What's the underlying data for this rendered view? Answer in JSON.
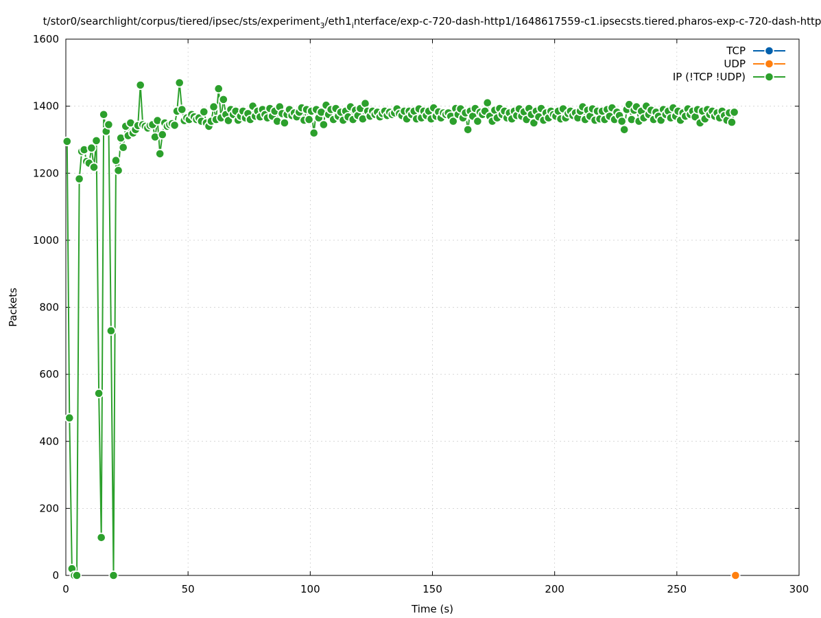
{
  "chart_data": {
    "type": "line",
    "title_parts": [
      {
        "text": "t/stor0/searchlight/corpus/tiered/ipsec/sts/experiment",
        "shift": "none"
      },
      {
        "text": "3",
        "shift": "sub"
      },
      {
        "text": "/eth1",
        "shift": "none"
      },
      {
        "text": "i",
        "shift": "sub"
      },
      {
        "text": "nterface/exp-c-720-dash-http1/1648617559-c1.ipsecsts.tiered.pharos-exp-c-720-dash-http",
        "shift": "none"
      }
    ],
    "xlabel": "Time (s)",
    "ylabel": "Packets",
    "xlim": [
      0,
      300
    ],
    "ylim": [
      0,
      1600
    ],
    "xticks": [
      0,
      50,
      100,
      150,
      200,
      250,
      300
    ],
    "yticks": [
      0,
      200,
      400,
      600,
      800,
      1000,
      1200,
      1400,
      1600
    ],
    "grid": true,
    "legend_position": "top-right",
    "series": [
      {
        "name": "TCP",
        "color": "#0060ad",
        "points": []
      },
      {
        "name": "UDP",
        "color": "#ff7f0e",
        "points": [
          [
            274,
            0
          ]
        ]
      },
      {
        "name": "IP (!TCP  !UDP)",
        "color": "#2ca02c",
        "points": [
          [
            0.5,
            1295
          ],
          [
            1.5,
            470
          ],
          [
            2.5,
            20
          ],
          [
            3.5,
            0
          ],
          [
            4.5,
            0
          ],
          [
            5.5,
            1183
          ],
          [
            6.5,
            1265
          ],
          [
            7.5,
            1270
          ],
          [
            8.5,
            1235
          ],
          [
            9.5,
            1230
          ],
          [
            10.5,
            1275
          ],
          [
            11.5,
            1218
          ],
          [
            12.5,
            1297
          ],
          [
            13.5,
            543
          ],
          [
            14.5,
            113
          ],
          [
            15.5,
            1375
          ],
          [
            16.5,
            1325
          ],
          [
            17.5,
            1345
          ],
          [
            18.5,
            730
          ],
          [
            19.5,
            0
          ],
          [
            20.5,
            1238
          ],
          [
            21.5,
            1208
          ],
          [
            22.5,
            1305
          ],
          [
            23.5,
            1277
          ],
          [
            24.5,
            1340
          ],
          [
            25.5,
            1312
          ],
          [
            26.5,
            1350
          ],
          [
            27.5,
            1320
          ],
          [
            28.5,
            1330
          ],
          [
            29.5,
            1342
          ],
          [
            30.5,
            1463
          ],
          [
            31.5,
            1345
          ],
          [
            32.5,
            1340
          ],
          [
            33.5,
            1335
          ],
          [
            34.5,
            1342
          ],
          [
            35.5,
            1345
          ],
          [
            36.5,
            1308
          ],
          [
            37.5,
            1357
          ],
          [
            38.5,
            1258
          ],
          [
            39.5,
            1315
          ],
          [
            40.5,
            1350
          ],
          [
            41.5,
            1340
          ],
          [
            42.5,
            1345
          ],
          [
            43.5,
            1348
          ],
          [
            44.5,
            1343
          ],
          [
            45.5,
            1385
          ],
          [
            46.5,
            1470
          ],
          [
            47.5,
            1390
          ],
          [
            48.5,
            1357
          ],
          [
            49.5,
            1365
          ],
          [
            50.5,
            1360
          ],
          [
            51.5,
            1375
          ],
          [
            52.5,
            1368
          ],
          [
            53.5,
            1360
          ],
          [
            54.5,
            1365
          ],
          [
            55.5,
            1355
          ],
          [
            56.5,
            1383
          ],
          [
            57.5,
            1350
          ],
          [
            58.5,
            1340
          ],
          [
            59.5,
            1355
          ],
          [
            60.5,
            1398
          ],
          [
            61.5,
            1360
          ],
          [
            62.5,
            1452
          ],
          [
            63.5,
            1365
          ],
          [
            64.5,
            1420
          ],
          [
            65.5,
            1375
          ],
          [
            66.5,
            1357
          ],
          [
            67.5,
            1390
          ],
          [
            68.5,
            1375
          ],
          [
            69.5,
            1385
          ],
          [
            70.5,
            1358
          ],
          [
            71.5,
            1370
          ],
          [
            72.5,
            1385
          ],
          [
            73.5,
            1365
          ],
          [
            74.5,
            1378
          ],
          [
            75.5,
            1360
          ],
          [
            76.5,
            1400
          ],
          [
            77.5,
            1370
          ],
          [
            78.5,
            1385
          ],
          [
            79.5,
            1368
          ],
          [
            80.5,
            1390
          ],
          [
            81.5,
            1375
          ],
          [
            82.5,
            1365
          ],
          [
            83.5,
            1393
          ],
          [
            84.5,
            1370
          ],
          [
            85.5,
            1385
          ],
          [
            86.5,
            1355
          ],
          [
            87.5,
            1398
          ],
          [
            88.5,
            1378
          ],
          [
            89.5,
            1350
          ],
          [
            90.5,
            1375
          ],
          [
            91.5,
            1390
          ],
          [
            92.5,
            1372
          ],
          [
            93.5,
            1380
          ],
          [
            94.5,
            1368
          ],
          [
            95.5,
            1382
          ],
          [
            96.5,
            1395
          ],
          [
            97.5,
            1358
          ],
          [
            98.5,
            1390
          ],
          [
            99.5,
            1360
          ],
          [
            100.5,
            1385
          ],
          [
            101.5,
            1320
          ],
          [
            102.5,
            1390
          ],
          [
            103.5,
            1365
          ],
          [
            104.5,
            1382
          ],
          [
            105.5,
            1345
          ],
          [
            106.5,
            1403
          ],
          [
            107.5,
            1375
          ],
          [
            108.5,
            1390
          ],
          [
            109.5,
            1360
          ],
          [
            110.5,
            1393
          ],
          [
            111.5,
            1370
          ],
          [
            112.5,
            1382
          ],
          [
            113.5,
            1358
          ],
          [
            114.5,
            1385
          ],
          [
            115.5,
            1368
          ],
          [
            116.5,
            1398
          ],
          [
            117.5,
            1360
          ],
          [
            118.5,
            1388
          ],
          [
            119.5,
            1372
          ],
          [
            120.5,
            1393
          ],
          [
            121.5,
            1362
          ],
          [
            122.5,
            1408
          ],
          [
            123.5,
            1385
          ],
          [
            124.5,
            1370
          ],
          [
            125.5,
            1385
          ],
          [
            126.5,
            1375
          ],
          [
            127.5,
            1382
          ],
          [
            128.5,
            1368
          ],
          [
            129.5,
            1378
          ],
          [
            130.5,
            1385
          ],
          [
            131.5,
            1372
          ],
          [
            132.5,
            1382
          ],
          [
            133.5,
            1375
          ],
          [
            134.5,
            1380
          ],
          [
            135.5,
            1392
          ],
          [
            136.5,
            1378
          ],
          [
            137.5,
            1372
          ],
          [
            138.5,
            1385
          ],
          [
            139.5,
            1362
          ],
          [
            140.5,
            1385
          ],
          [
            141.5,
            1375
          ],
          [
            142.5,
            1385
          ],
          [
            143.5,
            1362
          ],
          [
            144.5,
            1392
          ],
          [
            145.5,
            1365
          ],
          [
            146.5,
            1385
          ],
          [
            147.5,
            1372
          ],
          [
            148.5,
            1385
          ],
          [
            149.5,
            1362
          ],
          [
            150.5,
            1395
          ],
          [
            151.5,
            1370
          ],
          [
            152.5,
            1383
          ],
          [
            153.5,
            1365
          ],
          [
            154.5,
            1380
          ],
          [
            155.5,
            1375
          ],
          [
            156.5,
            1380
          ],
          [
            157.5,
            1370
          ],
          [
            158.5,
            1355
          ],
          [
            159.5,
            1393
          ],
          [
            160.5,
            1375
          ],
          [
            161.5,
            1392
          ],
          [
            162.5,
            1365
          ],
          [
            163.5,
            1380
          ],
          [
            164.5,
            1330
          ],
          [
            165.5,
            1385
          ],
          [
            166.5,
            1370
          ],
          [
            167.5,
            1393
          ],
          [
            168.5,
            1355
          ],
          [
            169.5,
            1382
          ],
          [
            170.5,
            1375
          ],
          [
            171.5,
            1385
          ],
          [
            172.5,
            1410
          ],
          [
            173.5,
            1370
          ],
          [
            174.5,
            1355
          ],
          [
            175.5,
            1388
          ],
          [
            176.5,
            1365
          ],
          [
            177.5,
            1393
          ],
          [
            178.5,
            1375
          ],
          [
            179.5,
            1385
          ],
          [
            180.5,
            1365
          ],
          [
            181.5,
            1380
          ],
          [
            182.5,
            1362
          ],
          [
            183.5,
            1385
          ],
          [
            184.5,
            1372
          ],
          [
            185.5,
            1392
          ],
          [
            186.5,
            1370
          ],
          [
            187.5,
            1383
          ],
          [
            188.5,
            1360
          ],
          [
            189.5,
            1393
          ],
          [
            190.5,
            1375
          ],
          [
            191.5,
            1350
          ],
          [
            192.5,
            1385
          ],
          [
            193.5,
            1368
          ],
          [
            194.5,
            1393
          ],
          [
            195.5,
            1358
          ],
          [
            196.5,
            1380
          ],
          [
            197.5,
            1365
          ],
          [
            198.5,
            1385
          ],
          [
            199.5,
            1375
          ],
          [
            200.5,
            1370
          ],
          [
            201.5,
            1385
          ],
          [
            202.5,
            1362
          ],
          [
            203.5,
            1392
          ],
          [
            204.5,
            1365
          ],
          [
            205.5,
            1378
          ],
          [
            206.5,
            1385
          ],
          [
            207.5,
            1372
          ],
          [
            208.5,
            1380
          ],
          [
            209.5,
            1365
          ],
          [
            210.5,
            1385
          ],
          [
            211.5,
            1398
          ],
          [
            212.5,
            1360
          ],
          [
            213.5,
            1388
          ],
          [
            214.5,
            1370
          ],
          [
            215.5,
            1392
          ],
          [
            216.5,
            1358
          ],
          [
            217.5,
            1385
          ],
          [
            218.5,
            1362
          ],
          [
            219.5,
            1385
          ],
          [
            220.5,
            1360
          ],
          [
            221.5,
            1390
          ],
          [
            222.5,
            1370
          ],
          [
            223.5,
            1395
          ],
          [
            224.5,
            1360
          ],
          [
            225.5,
            1382
          ],
          [
            226.5,
            1372
          ],
          [
            227.5,
            1355
          ],
          [
            228.5,
            1330
          ],
          [
            229.5,
            1390
          ],
          [
            230.5,
            1405
          ],
          [
            231.5,
            1360
          ],
          [
            232.5,
            1388
          ],
          [
            233.5,
            1398
          ],
          [
            234.5,
            1355
          ],
          [
            235.5,
            1385
          ],
          [
            236.5,
            1365
          ],
          [
            237.5,
            1400
          ],
          [
            238.5,
            1375
          ],
          [
            239.5,
            1388
          ],
          [
            240.5,
            1360
          ],
          [
            241.5,
            1382
          ],
          [
            242.5,
            1370
          ],
          [
            243.5,
            1358
          ],
          [
            244.5,
            1390
          ],
          [
            245.5,
            1375
          ],
          [
            246.5,
            1385
          ],
          [
            247.5,
            1365
          ],
          [
            248.5,
            1395
          ],
          [
            249.5,
            1370
          ],
          [
            250.5,
            1385
          ],
          [
            251.5,
            1358
          ],
          [
            252.5,
            1380
          ],
          [
            253.5,
            1370
          ],
          [
            254.5,
            1392
          ],
          [
            255.5,
            1375
          ],
          [
            256.5,
            1385
          ],
          [
            257.5,
            1368
          ],
          [
            258.5,
            1390
          ],
          [
            259.5,
            1350
          ],
          [
            260.5,
            1385
          ],
          [
            261.5,
            1362
          ],
          [
            262.5,
            1390
          ],
          [
            263.5,
            1375
          ],
          [
            264.5,
            1385
          ],
          [
            265.5,
            1370
          ],
          [
            266.5,
            1380
          ],
          [
            267.5,
            1365
          ],
          [
            268.5,
            1385
          ],
          [
            269.5,
            1372
          ],
          [
            270.5,
            1358
          ],
          [
            271.5,
            1380
          ],
          [
            272.5,
            1352
          ],
          [
            273.5,
            1382
          ]
        ]
      }
    ]
  }
}
